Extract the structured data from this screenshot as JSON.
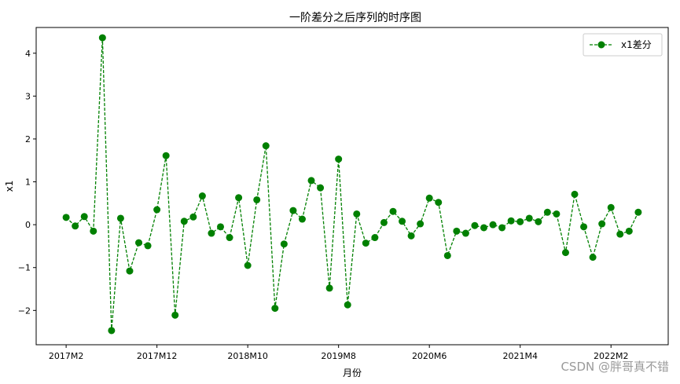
{
  "chart_data": {
    "type": "line",
    "title": "一阶差分之后序列的时序图",
    "xlabel": "月份",
    "ylabel": "x1",
    "x_ticks": [
      "2017M2",
      "2017M12",
      "2018M10",
      "2019M8",
      "2020M6",
      "2021M4",
      "2022M2"
    ],
    "x_tick_positions": [
      0,
      10,
      20,
      30,
      40,
      50,
      60
    ],
    "xlim": [
      -3.3,
      66.3
    ],
    "ylim": [
      -2.8,
      4.6
    ],
    "y_ticks": [
      -2,
      -1,
      0,
      1,
      2,
      3,
      4
    ],
    "legend_position": "top-right",
    "grid": false,
    "series": [
      {
        "name": "x1差分",
        "color": "#008000",
        "line_style": "dashed",
        "marker": "circle",
        "values": [
          0.17,
          -0.03,
          0.19,
          -0.15,
          4.36,
          -2.47,
          0.15,
          -1.08,
          -0.42,
          -0.49,
          0.35,
          1.61,
          -2.11,
          0.08,
          0.18,
          0.67,
          -0.2,
          -0.05,
          -0.3,
          0.63,
          -0.95,
          0.58,
          1.84,
          -1.95,
          -0.45,
          0.33,
          0.13,
          1.03,
          0.86,
          -1.48,
          1.53,
          -1.87,
          0.25,
          -0.43,
          -0.3,
          0.05,
          0.31,
          0.08,
          -0.26,
          0.02,
          0.62,
          0.52,
          -0.72,
          -0.15,
          -0.2,
          -0.02,
          -0.07,
          0.0,
          -0.07,
          0.09,
          0.07,
          0.15,
          0.07,
          0.29,
          0.25,
          -0.65,
          0.71,
          -0.05,
          -0.76,
          0.02,
          0.4,
          -0.22,
          -0.15,
          0.29
        ]
      }
    ]
  },
  "watermark": "CSDN @胖哥真不错"
}
